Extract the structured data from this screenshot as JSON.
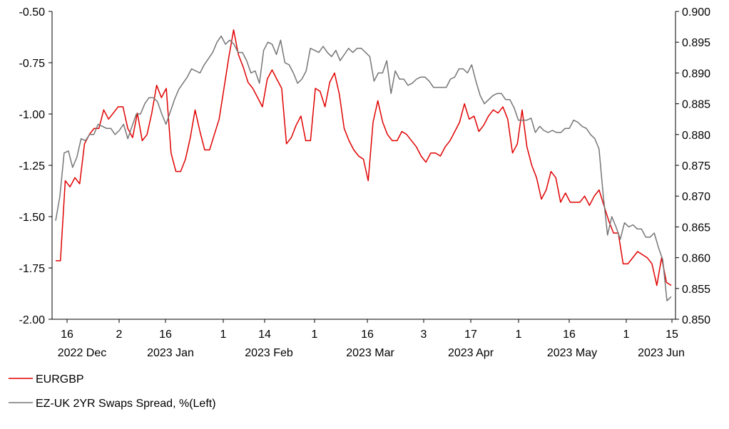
{
  "chart_data": {
    "type": "line",
    "title": "",
    "legend": {
      "placement": "bottom-left",
      "items": [
        {
          "label": "EURGBP",
          "color": "#e00000"
        },
        {
          "label": "EZ-UK 2YR Swaps Spread, %(Left)",
          "color": "#767676"
        }
      ]
    },
    "x_axis": {
      "day_ticks": [
        "16",
        "2",
        "16",
        "1",
        "14",
        "1",
        "16",
        "3",
        "17",
        "1",
        "16",
        "1",
        "15"
      ],
      "month_labels": [
        "2022 Dec",
        "2023 Jan",
        "2023 Feb",
        "2023 Mar",
        "2023 Apr",
        "2023 May",
        "2023 Jun"
      ]
    },
    "left_axis": {
      "ticks": [
        "-0.50",
        "-0.75",
        "-1.00",
        "-1.25",
        "-1.50",
        "-1.75",
        "-2.00"
      ],
      "range": [
        -2.0,
        -0.5
      ]
    },
    "right_axis": {
      "ticks": [
        "0.900",
        "0.895",
        "0.890",
        "0.885",
        "0.880",
        "0.875",
        "0.870",
        "0.865",
        "0.860",
        "0.855",
        "0.850"
      ],
      "range": [
        0.85,
        0.9
      ]
    },
    "grid": false,
    "series": [
      {
        "name": "EURGBP",
        "axis": "right",
        "color": "#e00000",
        "values": [
          0.8595,
          0.8595,
          0.8725,
          0.8715,
          0.873,
          0.872,
          0.8785,
          0.88,
          0.881,
          0.881,
          0.884,
          0.8825,
          0.8835,
          0.8845,
          0.8845,
          0.881,
          0.8795,
          0.8835,
          0.879,
          0.88,
          0.8835,
          0.888,
          0.886,
          0.8875,
          0.877,
          0.874,
          0.874,
          0.876,
          0.8795,
          0.884,
          0.8805,
          0.8775,
          0.8775,
          0.88,
          0.8825,
          0.8875,
          0.8925,
          0.897,
          0.893,
          0.891,
          0.8885,
          0.8875,
          0.886,
          0.8845,
          0.889,
          0.8905,
          0.889,
          0.8875,
          0.8785,
          0.8795,
          0.8815,
          0.883,
          0.879,
          0.879,
          0.8875,
          0.887,
          0.8845,
          0.8885,
          0.89,
          0.8865,
          0.881,
          0.879,
          0.8775,
          0.8765,
          0.876,
          0.8725,
          0.882,
          0.8855,
          0.882,
          0.88,
          0.879,
          0.879,
          0.8805,
          0.88,
          0.879,
          0.878,
          0.8765,
          0.8755,
          0.877,
          0.877,
          0.8765,
          0.878,
          0.879,
          0.8805,
          0.882,
          0.885,
          0.8825,
          0.883,
          0.8805,
          0.8815,
          0.883,
          0.884,
          0.8835,
          0.8845,
          0.8825,
          0.877,
          0.8785,
          0.884,
          0.878,
          0.875,
          0.873,
          0.8695,
          0.871,
          0.874,
          0.873,
          0.869,
          0.8705,
          0.869,
          0.869,
          0.869,
          0.87,
          0.8685,
          0.87,
          0.871,
          0.8685,
          0.866,
          0.864,
          0.864,
          0.859,
          0.859,
          0.86,
          0.861,
          0.8605,
          0.86,
          0.859,
          0.8555,
          0.86,
          0.856,
          0.8555
        ]
      },
      {
        "name": "EZ-UK 2YR Swaps Spread, %(Left)",
        "axis": "left",
        "color": "#767676",
        "values": [
          -1.52,
          -1.4,
          -1.19,
          -1.18,
          -1.26,
          -1.21,
          -1.12,
          -1.13,
          -1.1,
          -1.1,
          -1.05,
          -1.06,
          -1.07,
          -1.07,
          -1.1,
          -1.08,
          -1.05,
          -1.12,
          -1.06,
          -1.0,
          -1.0,
          -0.95,
          -0.92,
          -0.92,
          -0.94,
          -1.0,
          -1.05,
          -0.99,
          -0.93,
          -0.88,
          -0.85,
          -0.82,
          -0.78,
          -0.79,
          -0.8,
          -0.76,
          -0.73,
          -0.7,
          -0.65,
          -0.62,
          -0.66,
          -0.64,
          -0.66,
          -0.7,
          -0.7,
          -0.74,
          -0.8,
          -0.79,
          -0.85,
          -0.69,
          -0.65,
          -0.66,
          -0.71,
          -0.64,
          -0.75,
          -0.76,
          -0.8,
          -0.85,
          -0.83,
          -0.79,
          -0.68,
          -0.69,
          -0.7,
          -0.67,
          -0.7,
          -0.72,
          -0.69,
          -0.74,
          -0.71,
          -0.68,
          -0.7,
          -0.68,
          -0.68,
          -0.7,
          -0.72,
          -0.84,
          -0.8,
          -0.8,
          -0.74,
          -0.9,
          -0.79,
          -0.83,
          -0.83,
          -0.86,
          -0.85,
          -0.83,
          -0.82,
          -0.82,
          -0.84,
          -0.87,
          -0.87,
          -0.87,
          -0.87,
          -0.83,
          -0.82,
          -0.78,
          -0.78,
          -0.8,
          -0.76,
          -0.84,
          -0.91,
          -0.95,
          -0.93,
          -0.91,
          -0.9,
          -0.9,
          -0.93,
          -0.93,
          -0.97,
          -1.03,
          -1.03,
          -1.03,
          -1.02,
          -1.09,
          -1.06,
          -1.08,
          -1.09,
          -1.08,
          -1.09,
          -1.09,
          -1.07,
          -1.07,
          -1.03,
          -1.04,
          -1.06,
          -1.07,
          -1.1,
          -1.12,
          -1.17,
          -1.4,
          -1.59,
          -1.5,
          -1.55,
          -1.61,
          -1.53,
          -1.55,
          -1.54,
          -1.56,
          -1.56,
          -1.6,
          -1.6,
          -1.58,
          -1.65,
          -1.71,
          -1.91,
          -1.89
        ]
      }
    ]
  }
}
